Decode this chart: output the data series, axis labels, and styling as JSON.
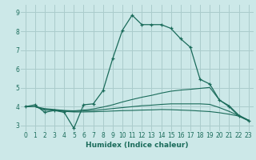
{
  "title": "",
  "xlabel": "Humidex (Indice chaleur)",
  "background_color": "#cce8e8",
  "grid_color": "#aacccc",
  "line_color": "#1a6b5a",
  "xlim": [
    -0.5,
    23.5
  ],
  "ylim": [
    2.7,
    9.4
  ],
  "xticks": [
    0,
    1,
    2,
    3,
    4,
    5,
    6,
    7,
    8,
    9,
    10,
    11,
    12,
    13,
    14,
    15,
    16,
    17,
    18,
    19,
    20,
    21,
    22,
    23
  ],
  "yticks": [
    3,
    4,
    5,
    6,
    7,
    8,
    9
  ],
  "series": [
    {
      "x": [
        0,
        1,
        2,
        3,
        4,
        5,
        6,
        7,
        8,
        9,
        10,
        11,
        12,
        13,
        14,
        15,
        16,
        17,
        18,
        19,
        20,
        21,
        22,
        23
      ],
      "y": [
        4.0,
        4.1,
        3.7,
        3.8,
        3.7,
        2.85,
        4.1,
        4.15,
        4.85,
        6.55,
        8.05,
        8.85,
        8.35,
        8.35,
        8.35,
        8.15,
        7.6,
        7.15,
        5.45,
        5.2,
        4.35,
        4.0,
        3.5,
        3.25
      ],
      "marker": true
    },
    {
      "x": [
        0,
        1,
        2,
        3,
        4,
        5,
        6,
        7,
        8,
        9,
        10,
        11,
        12,
        13,
        14,
        15,
        16,
        17,
        18,
        19,
        20,
        21,
        22,
        23
      ],
      "y": [
        4.0,
        4.0,
        3.9,
        3.85,
        3.8,
        3.78,
        3.82,
        3.88,
        3.98,
        4.1,
        4.25,
        4.38,
        4.5,
        4.6,
        4.72,
        4.82,
        4.88,
        4.92,
        4.97,
        5.02,
        4.35,
        4.05,
        3.55,
        3.28
      ],
      "marker": false
    },
    {
      "x": [
        0,
        1,
        2,
        3,
        4,
        5,
        6,
        7,
        8,
        9,
        10,
        11,
        12,
        13,
        14,
        15,
        16,
        17,
        18,
        19,
        20,
        21,
        22,
        23
      ],
      "y": [
        4.0,
        4.0,
        3.85,
        3.82,
        3.78,
        3.75,
        3.77,
        3.8,
        3.85,
        3.9,
        3.95,
        4.0,
        4.05,
        4.08,
        4.12,
        4.15,
        4.15,
        4.15,
        4.15,
        4.12,
        3.95,
        3.75,
        3.52,
        3.28
      ],
      "marker": false
    },
    {
      "x": [
        0,
        1,
        2,
        3,
        4,
        5,
        6,
        7,
        8,
        9,
        10,
        11,
        12,
        13,
        14,
        15,
        16,
        17,
        18,
        19,
        20,
        21,
        22,
        23
      ],
      "y": [
        4.0,
        4.0,
        3.82,
        3.8,
        3.75,
        3.72,
        3.72,
        3.73,
        3.75,
        3.77,
        3.79,
        3.8,
        3.82,
        3.83,
        3.85,
        3.84,
        3.82,
        3.8,
        3.77,
        3.74,
        3.68,
        3.6,
        3.5,
        3.27
      ],
      "marker": false
    }
  ]
}
